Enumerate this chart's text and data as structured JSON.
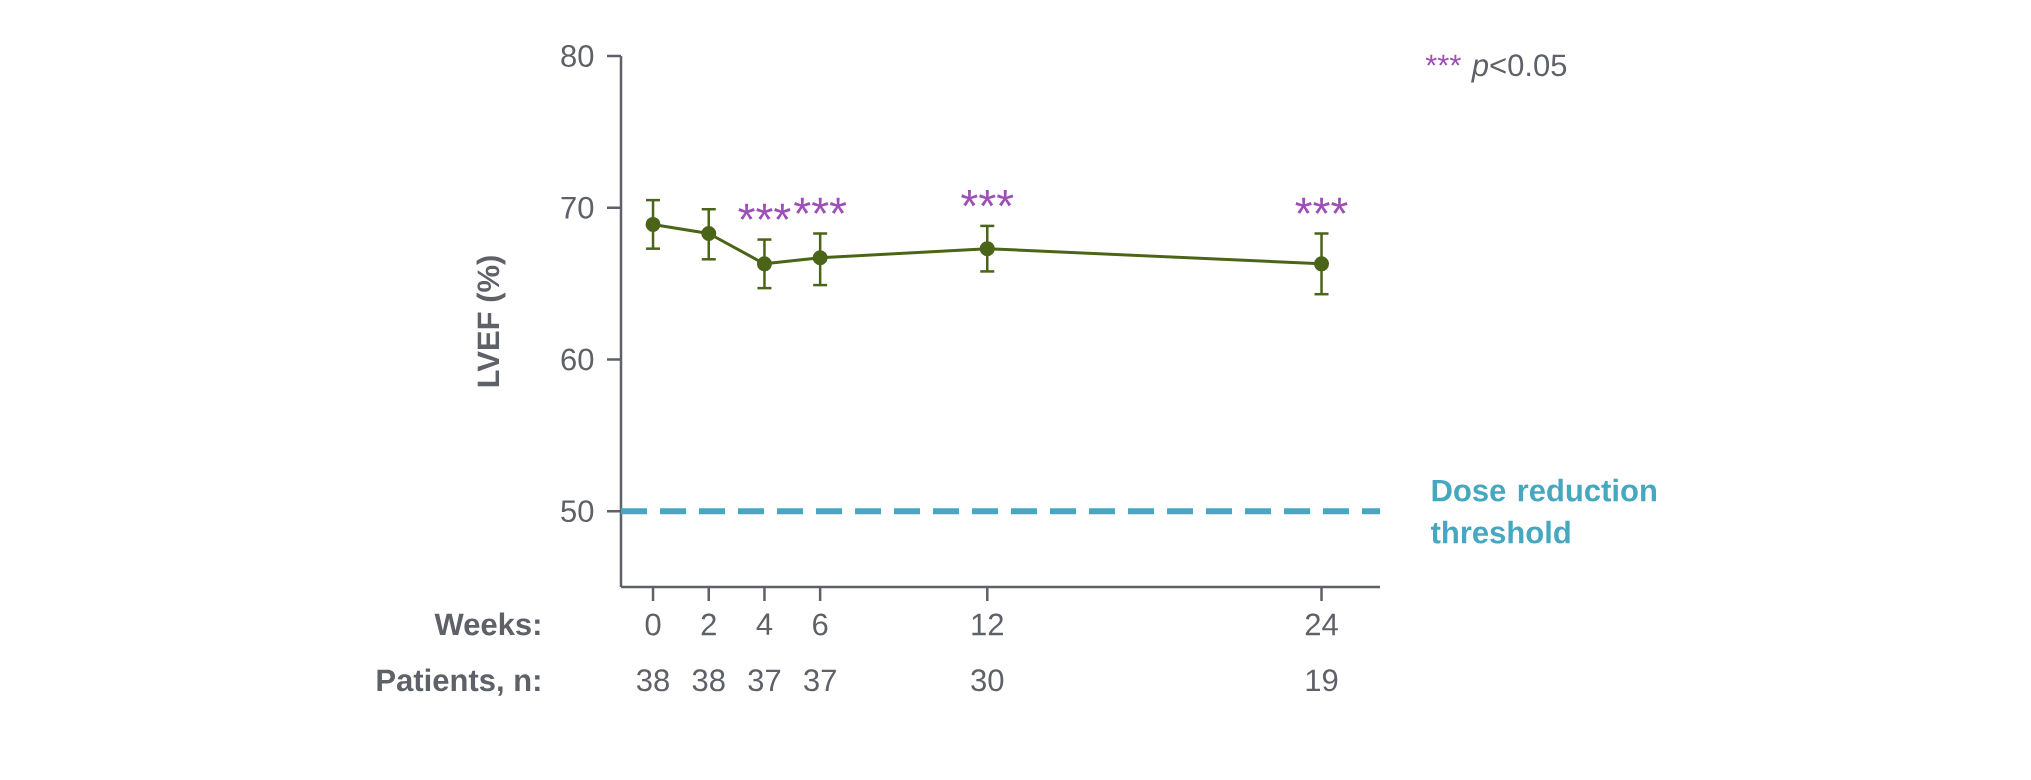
{
  "chart_data": {
    "type": "line",
    "ylabel": "LVEF (%)",
    "xlabel": "Weeks:",
    "x": [
      0,
      2,
      4,
      6,
      12,
      24
    ],
    "series": [
      {
        "color": "#4a6418",
        "values": [
          68.9,
          68.3,
          66.3,
          66.7,
          67.3,
          66.3
        ],
        "errors": [
          [
            67.3,
            70.5
          ],
          [
            66.6,
            69.9
          ],
          [
            64.7,
            67.9
          ],
          [
            64.9,
            68.3
          ],
          [
            65.8,
            68.8
          ],
          [
            64.3,
            68.3
          ]
        ]
      }
    ],
    "marker": "circle",
    "line_style": "solid",
    "xlim": [
      -1.15,
      26.1
    ],
    "xticks": [
      0,
      2,
      4,
      6,
      12,
      24
    ],
    "ylim": [
      45,
      80
    ],
    "yticks": [
      50,
      60,
      70,
      80
    ],
    "ref_lines": [
      {
        "axis": "y",
        "value": 50,
        "label": "Dose reduction threshold",
        "color": "#45a8c0",
        "line_style": "dashed"
      }
    ],
    "annotations": [
      "Patients, n:",
      "38",
      "38",
      "37",
      "37",
      "30",
      "19",
      "***",
      "***",
      "***",
      "***",
      "***",
      "*p*<0.05"
    ],
    "grid": false
  }
}
